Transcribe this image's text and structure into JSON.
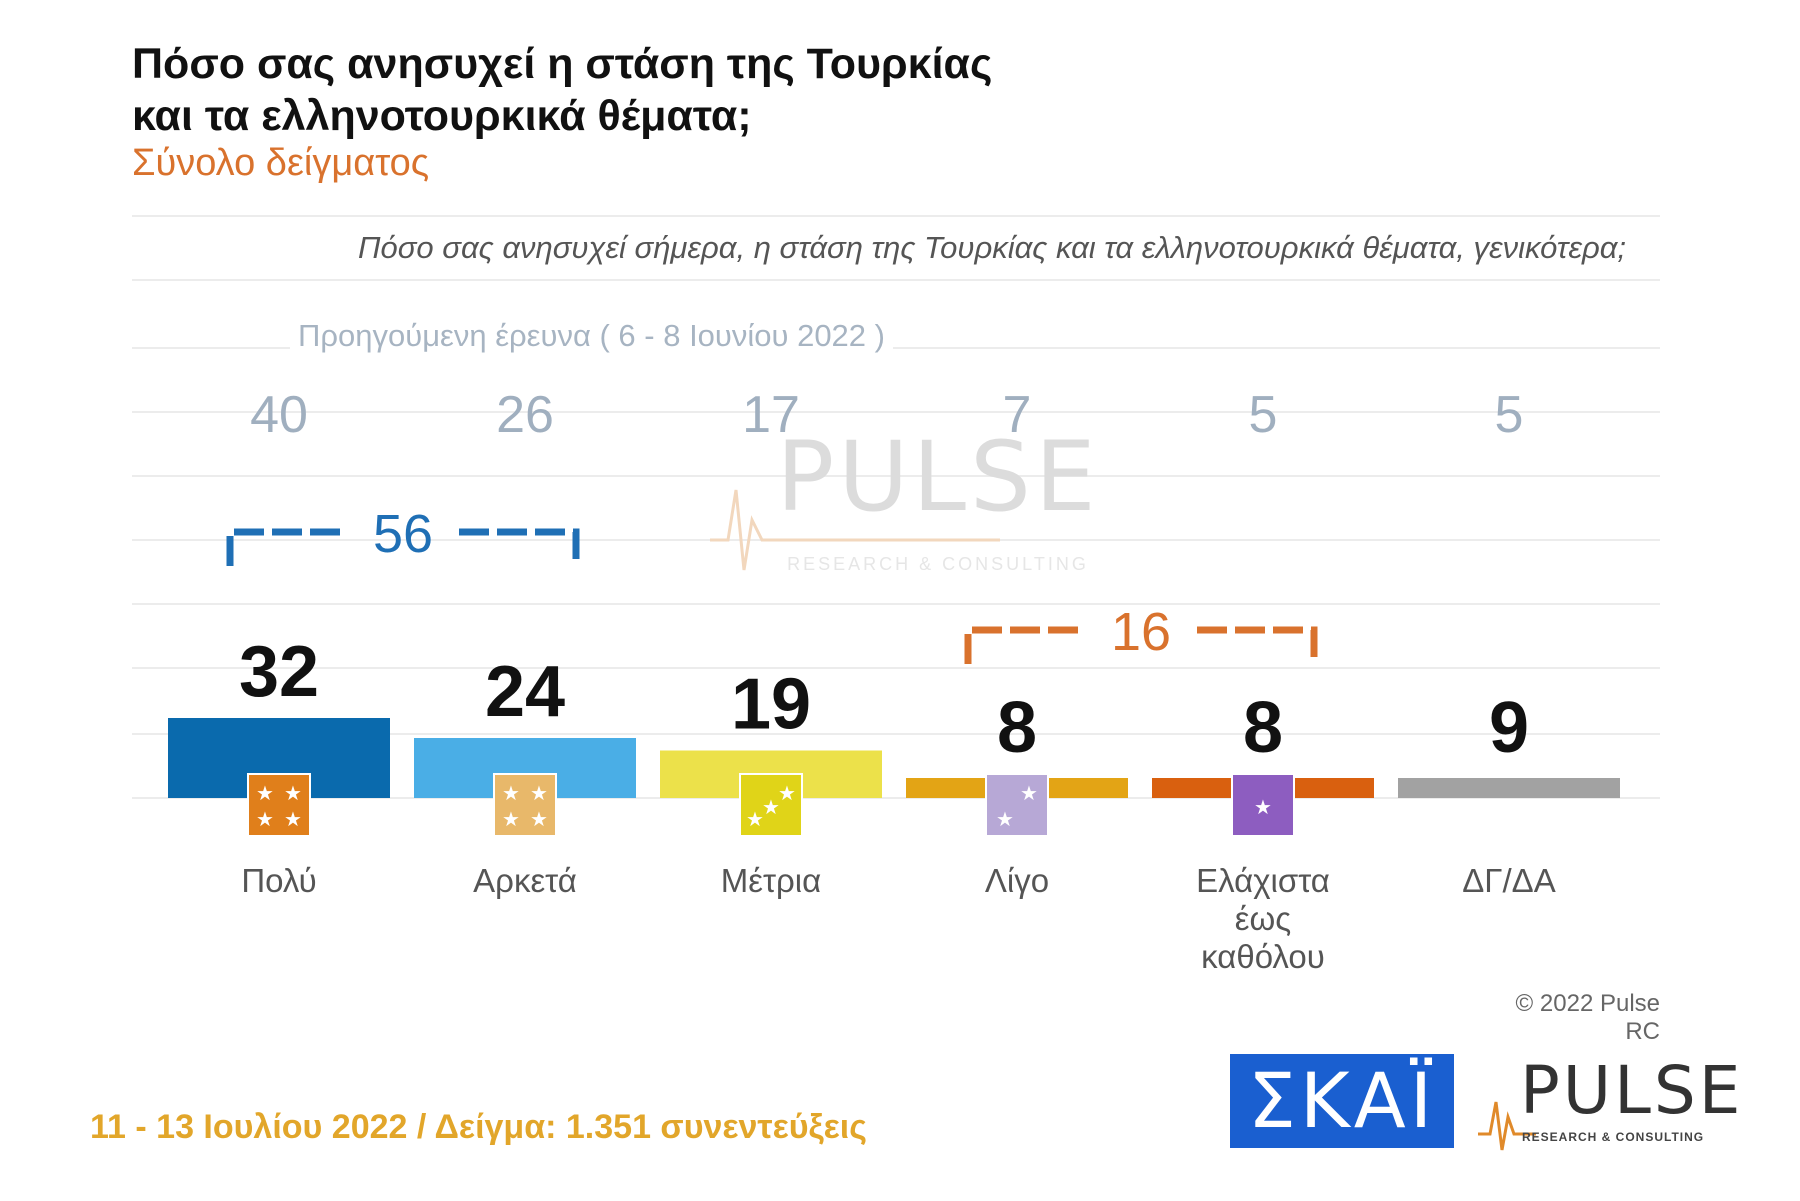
{
  "title_line1": "Πόσο σας ανησυχεί η στάση της Τουρκίας",
  "title_line2": "και τα ελληνοτουρκικά θέματα;",
  "subtitle": "Σύνολο δείγματος",
  "question": "Πόσο σας ανησυχεί σήμερα, η στάση της Τουρκίας και τα ελληνοτουρκικά θέματα, γενικότερα;",
  "previous_survey_label": "Προηγούμενη έρευνα ( 6 - 8 Ιουνίου 2022 )",
  "footer": "11 - 13 Ιουλίου 2022 / Δείγμα: 1.351 συνεντεύξεις",
  "copyright": "© 2022 Pulse RC",
  "logos": {
    "skai": "ΣΚΑΪ",
    "pulse": "PULSE",
    "pulse_tagline": "RESEARCH & CONSULTING"
  },
  "watermark": {
    "word": "PULSE",
    "tagline": "RESEARCH & CONSULTING"
  },
  "chart_data": {
    "type": "bar",
    "categories": [
      "Πολύ",
      "Αρκετά",
      "Μέτρια",
      "Λίγο",
      "Ελάχιστα\nέως\nκαθόλου",
      "ΔΓ/ΔΑ"
    ],
    "values": [
      32,
      24,
      19,
      8,
      8,
      9
    ],
    "previous_values": [
      40,
      26,
      17,
      7,
      5,
      5
    ],
    "colors": [
      "#0a6aad",
      "#4aaee6",
      "#ece14a",
      "#e3a415",
      "#d9600f",
      "#a2a2a2"
    ],
    "badge_colors": [
      "#e07f1b",
      "#e8b86a",
      "#e0d418",
      "#b7a8d6",
      "#8d5dc0",
      null
    ],
    "badge_stars": [
      4,
      4,
      3,
      2,
      1,
      0
    ],
    "groups": [
      {
        "label": "56",
        "from": 0,
        "to": 1,
        "color": "#1f6fb5"
      },
      {
        "label": "16",
        "from": 3,
        "to": 4,
        "color": "#d9722d"
      }
    ],
    "ylim": [
      0,
      40
    ],
    "grid": true,
    "legend": "none"
  }
}
